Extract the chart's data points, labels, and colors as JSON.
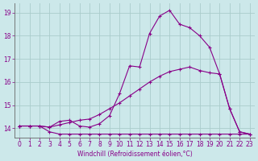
{
  "xlabel": "Windchill (Refroidissement éolien,°C)",
  "bg_color": "#cce8ea",
  "grid_color": "#aacccc",
  "line_color": "#880088",
  "xlim": [
    -0.5,
    23.5
  ],
  "ylim": [
    13.6,
    19.4
  ],
  "yticks": [
    14,
    15,
    16,
    17,
    18,
    19
  ],
  "xticks": [
    0,
    1,
    2,
    3,
    4,
    5,
    6,
    7,
    8,
    9,
    10,
    11,
    12,
    13,
    14,
    15,
    16,
    17,
    18,
    19,
    20,
    21,
    22,
    23
  ],
  "line1_x": [
    0,
    1,
    2,
    3,
    4,
    5,
    6,
    7,
    8,
    9,
    10,
    11,
    12,
    13,
    14,
    15,
    16,
    17,
    18,
    19,
    20,
    21,
    22,
    23
  ],
  "line1_y": [
    14.1,
    14.1,
    14.1,
    13.85,
    13.75,
    13.75,
    13.75,
    13.75,
    13.75,
    13.75,
    13.75,
    13.75,
    13.75,
    13.75,
    13.75,
    13.75,
    13.75,
    13.75,
    13.75,
    13.75,
    13.75,
    13.75,
    13.75,
    13.75
  ],
  "line2_x": [
    0,
    1,
    2,
    3,
    4,
    5,
    6,
    7,
    8,
    9,
    10,
    11,
    12,
    13,
    14,
    15,
    16,
    17,
    18,
    19,
    20,
    21,
    22,
    23
  ],
  "line2_y": [
    14.1,
    14.1,
    14.1,
    14.05,
    14.15,
    14.25,
    14.35,
    14.4,
    14.6,
    14.85,
    15.1,
    15.4,
    15.7,
    16.0,
    16.25,
    16.45,
    16.55,
    16.65,
    16.5,
    16.4,
    16.35,
    14.85,
    13.85,
    13.75
  ],
  "line3_x": [
    0,
    1,
    2,
    3,
    4,
    5,
    6,
    7,
    8,
    9,
    10,
    11,
    12,
    13,
    14,
    15,
    16,
    17,
    18,
    19,
    20,
    21,
    22,
    23
  ],
  "line3_y": [
    14.1,
    14.1,
    14.1,
    14.05,
    14.3,
    14.35,
    14.1,
    14.05,
    14.2,
    14.55,
    15.5,
    16.7,
    16.65,
    18.1,
    18.85,
    19.1,
    18.5,
    18.35,
    18.0,
    17.5,
    16.35,
    14.85,
    13.85,
    13.75
  ],
  "tick_fontsize": 5.5,
  "xlabel_fontsize": 5.5
}
